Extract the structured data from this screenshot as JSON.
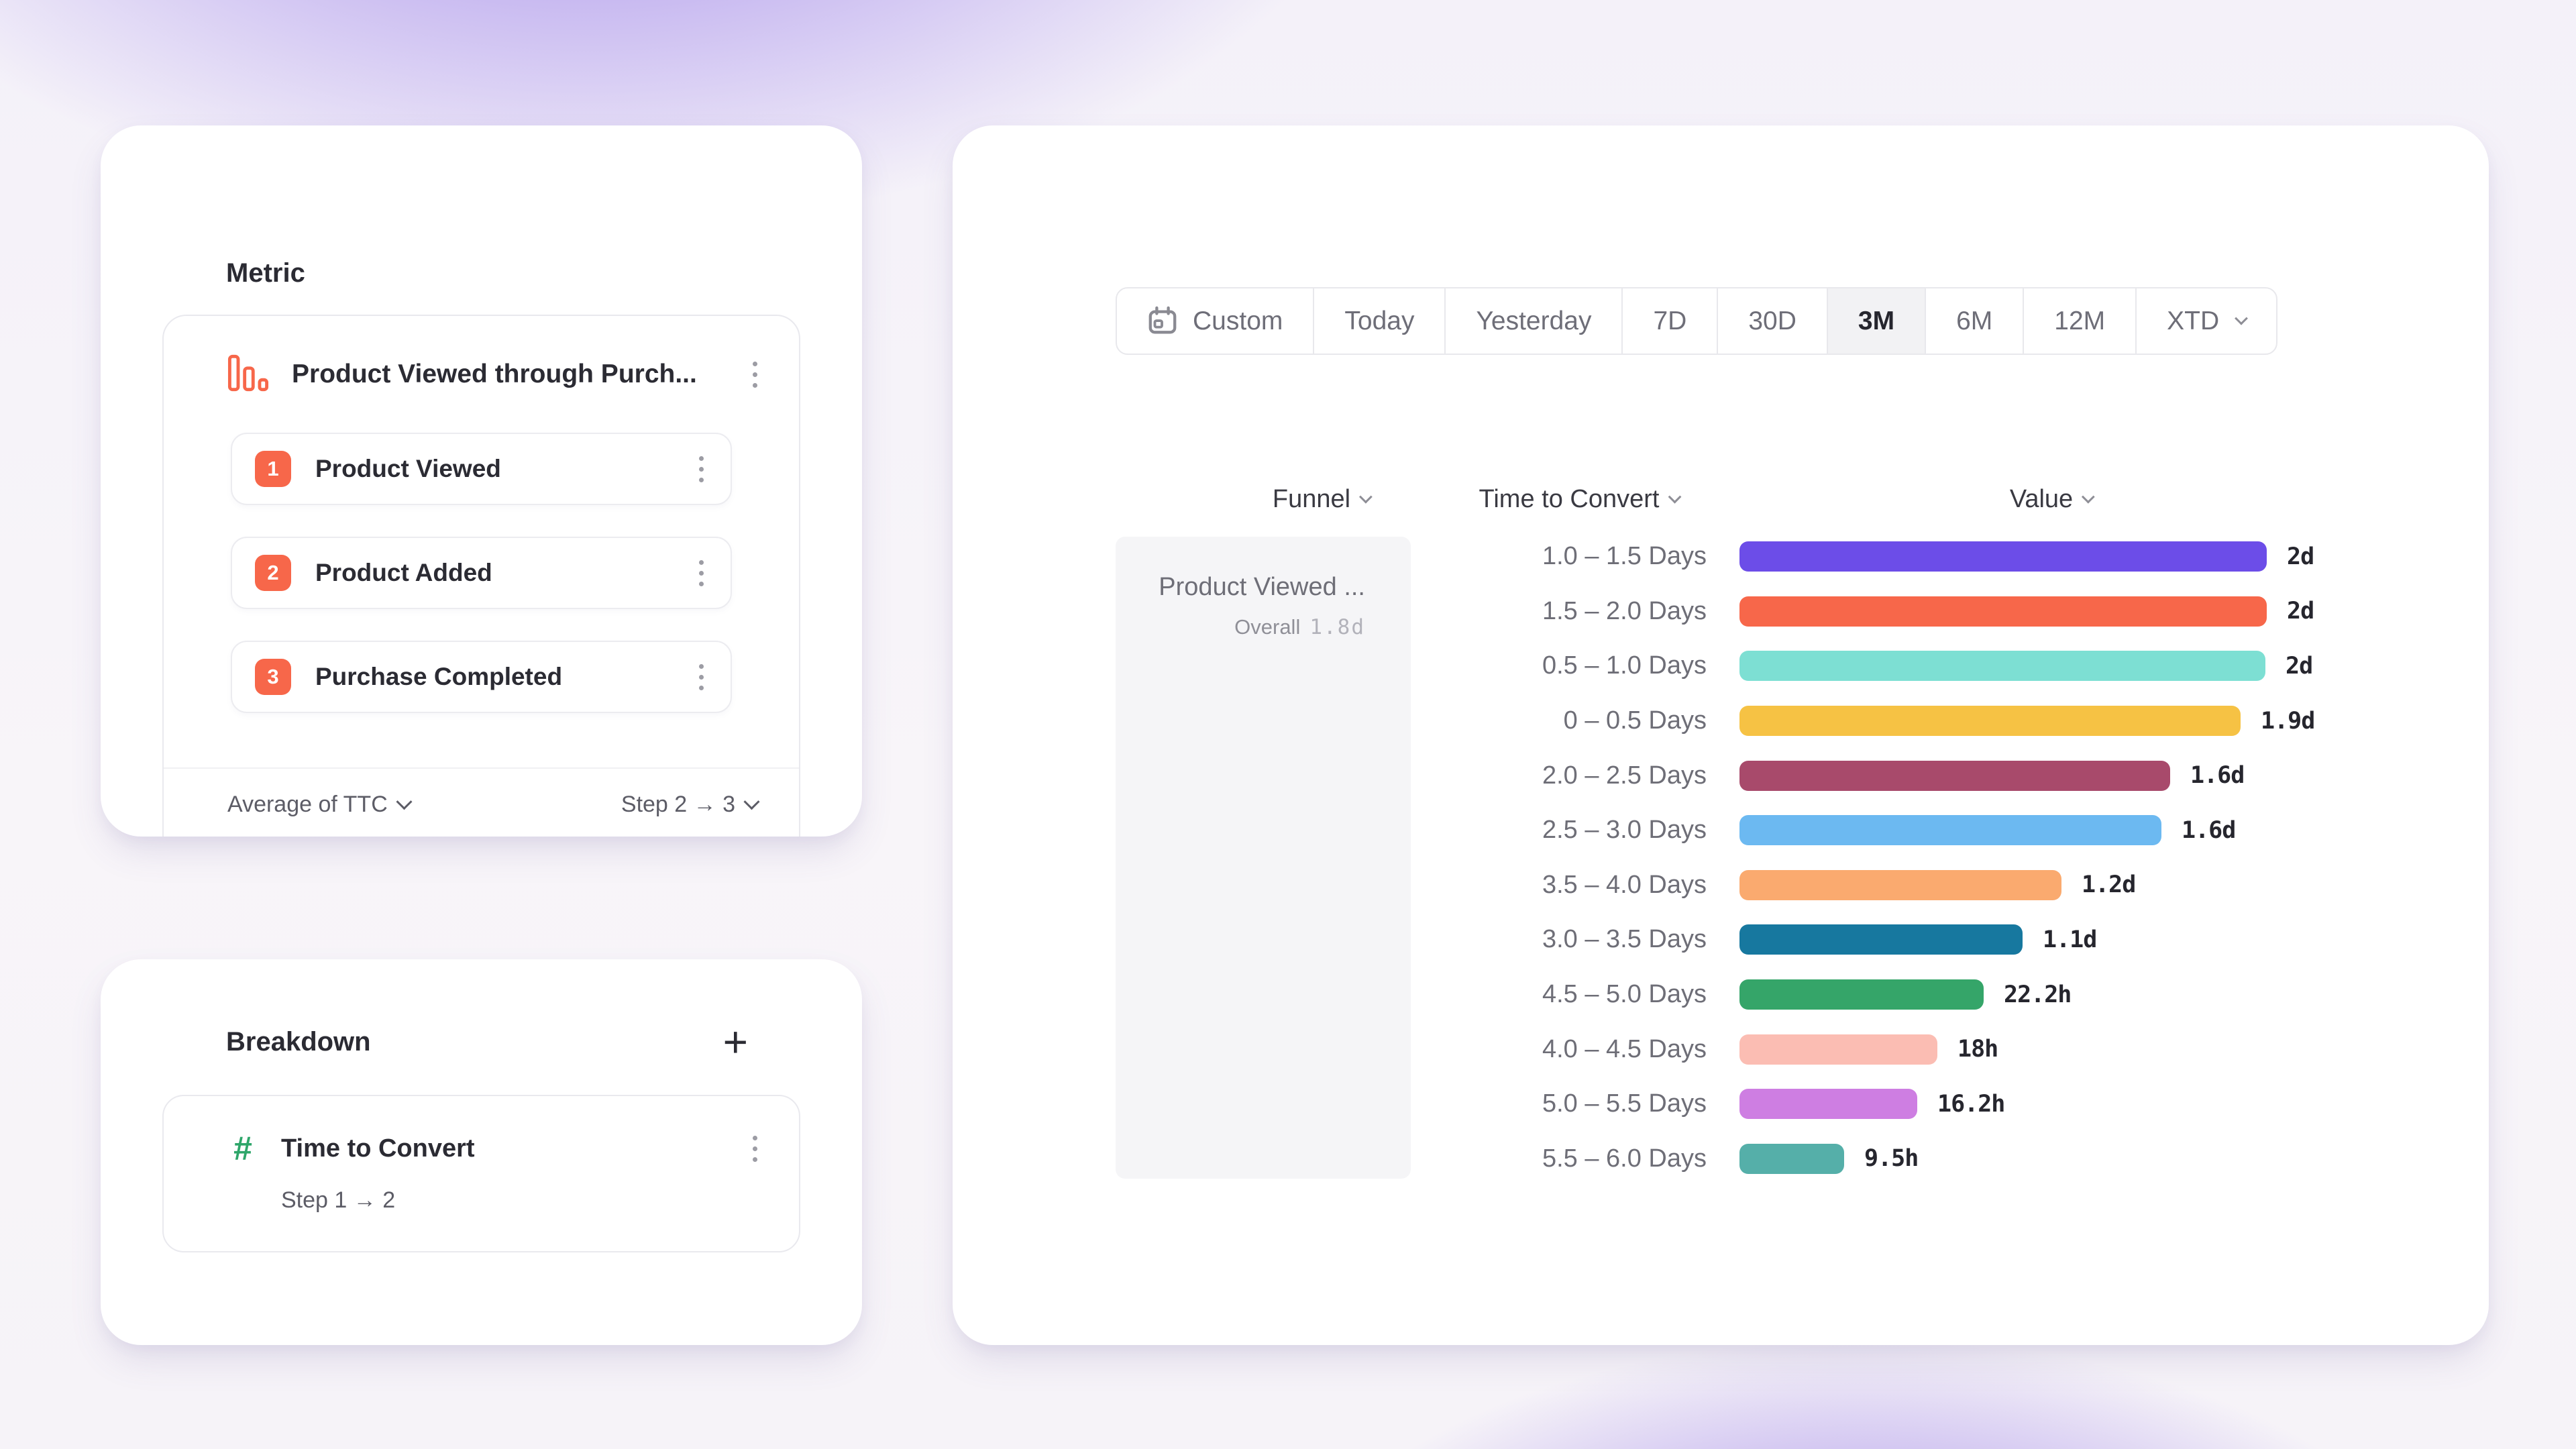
{
  "metric_card": {
    "title": "Metric",
    "funnel_name": "Product Viewed through Purch...",
    "accent_color": "#F7674A",
    "steps": [
      {
        "number": "1",
        "label": "Product Viewed"
      },
      {
        "number": "2",
        "label": "Product Added"
      },
      {
        "number": "3",
        "label": "Purchase Completed"
      }
    ],
    "aggregation_label": "Average of TTC",
    "step_range_label": "Step 2 → 3"
  },
  "breakdown_card": {
    "title": "Breakdown",
    "add_button": "+",
    "property_name": "Time to Convert",
    "property_detail": "Step 1 → 2",
    "icon_color": "#2EA66A"
  },
  "report_card": {
    "date_picker": {
      "options": [
        {
          "label": "Custom",
          "selected": false,
          "icon": "calendar-icon"
        },
        {
          "label": "Today",
          "selected": false
        },
        {
          "label": "Yesterday",
          "selected": false
        },
        {
          "label": "7D",
          "selected": false
        },
        {
          "label": "30D",
          "selected": false
        },
        {
          "label": "3M",
          "selected": true
        },
        {
          "label": "6M",
          "selected": false
        },
        {
          "label": "12M",
          "selected": false
        },
        {
          "label": "XTD",
          "selected": false,
          "has_chevron": true
        }
      ]
    },
    "columns": [
      {
        "label": "Funnel"
      },
      {
        "label": "Time to Convert"
      },
      {
        "label": "Value"
      }
    ],
    "funnel_cell": {
      "name": "Product Viewed ...",
      "overall_label": "Overall",
      "overall_value": "1.8d"
    }
  },
  "chart_data": {
    "type": "bar",
    "orientation": "horizontal",
    "title": "",
    "xlabel": "Value",
    "ylabel": "Time to Convert",
    "xlim_hours": [
      0,
      48
    ],
    "grid": false,
    "legend": "none",
    "categories": [
      "1.0 – 1.5 Days",
      "1.5 – 2.0 Days",
      "0.5 – 1.0 Days",
      "0 – 0.5 Days",
      "2.0 – 2.5 Days",
      "2.5 – 3.0 Days",
      "3.5 – 4.0 Days",
      "3.0 – 3.5 Days",
      "4.5 – 5.0 Days",
      "4.0 – 4.5 Days",
      "5.0 – 5.5 Days",
      "5.5 – 6.0 Days"
    ],
    "values_display": [
      "2d",
      "2d",
      "2d",
      "1.9d",
      "1.6d",
      "1.6d",
      "1.2d",
      "1.1d",
      "22.2h",
      "18h",
      "16.2h",
      "9.5h"
    ],
    "values_hours": [
      48,
      48,
      47.9,
      45.6,
      39.2,
      38.4,
      29.3,
      25.8,
      22.2,
      18,
      16.2,
      9.5
    ],
    "colors": [
      "#6C4DE8",
      "#F7674A",
      "#7DDFD3",
      "#F6C244",
      "#A84A6B",
      "#6CB9F1",
      "#FAAA6F",
      "#17789F",
      "#35A569",
      "#FBBDB3",
      "#CE7EE2",
      "#55AFA9"
    ]
  }
}
